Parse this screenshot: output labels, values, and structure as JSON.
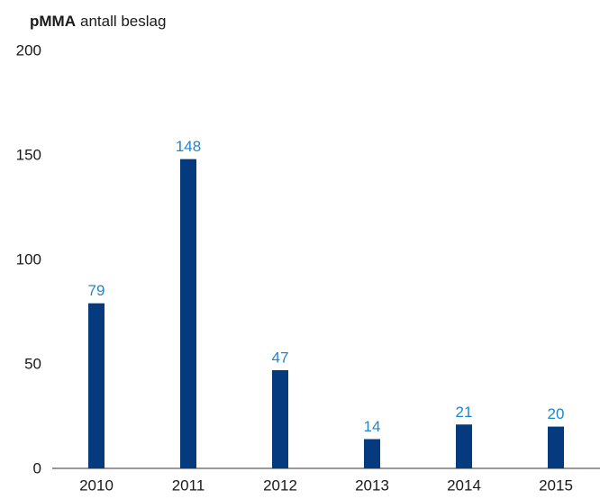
{
  "chart_data": {
    "type": "bar",
    "title": {
      "bold": "pMMA",
      "text": "antall beslag"
    },
    "categories": [
      "2010",
      "2011",
      "2012",
      "2013",
      "2014",
      "2015"
    ],
    "values": [
      79,
      148,
      47,
      14,
      21,
      20
    ],
    "color": "#053a7e",
    "label_color": "#1f86c8",
    "ylim": [
      0,
      200
    ],
    "yticks": [
      0,
      50,
      100,
      150,
      200
    ],
    "grid": false
  }
}
